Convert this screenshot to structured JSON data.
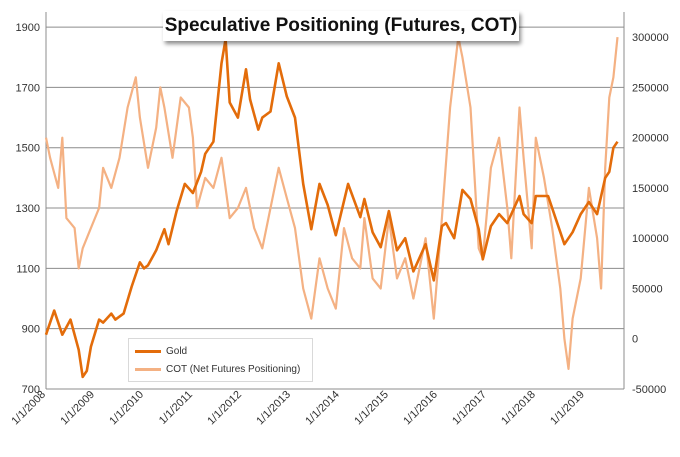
{
  "chart_data": {
    "type": "line",
    "title": "Speculative Positioning (Futures, COT)",
    "xlabel": "",
    "ylabel": "",
    "x_ticks": [
      "1/1/2008",
      "1/1/2009",
      "1/1/2010",
      "1/1/2011",
      "1/1/2012",
      "1/1/2013",
      "1/1/2014",
      "1/1/2015",
      "1/1/2016",
      "1/1/2017",
      "1/1/2018",
      "1/1/2019"
    ],
    "ylim_left": [
      700,
      1950
    ],
    "ylim_right": [
      -50000,
      325000
    ],
    "yticks_left": [
      700,
      900,
      1100,
      1300,
      1500,
      1700,
      1900
    ],
    "yticks_right": [
      -50000,
      0,
      50000,
      100000,
      150000,
      200000,
      250000,
      300000
    ],
    "grid": true,
    "legend_position": "bottom-left",
    "series": [
      {
        "name": "Gold",
        "axis": "left",
        "color": "#e36c0a",
        "points": [
          [
            "2008-01",
            880
          ],
          [
            "2008-03",
            960
          ],
          [
            "2008-05",
            880
          ],
          [
            "2008-07",
            930
          ],
          [
            "2008-09",
            830
          ],
          [
            "2008-10",
            740
          ],
          [
            "2008-11",
            760
          ],
          [
            "2008-12",
            840
          ],
          [
            "2009-02",
            930
          ],
          [
            "2009-03",
            920
          ],
          [
            "2009-05",
            950
          ],
          [
            "2009-06",
            930
          ],
          [
            "2009-08",
            950
          ],
          [
            "2009-10",
            1040
          ],
          [
            "2009-12",
            1120
          ],
          [
            "2010-01",
            1100
          ],
          [
            "2010-02",
            1110
          ],
          [
            "2010-04",
            1160
          ],
          [
            "2010-06",
            1230
          ],
          [
            "2010-07",
            1180
          ],
          [
            "2010-09",
            1290
          ],
          [
            "2010-11",
            1380
          ],
          [
            "2011-01",
            1350
          ],
          [
            "2011-03",
            1420
          ],
          [
            "2011-04",
            1480
          ],
          [
            "2011-06",
            1520
          ],
          [
            "2011-08",
            1780
          ],
          [
            "2011-09",
            1860
          ],
          [
            "2011-10",
            1650
          ],
          [
            "2011-12",
            1600
          ],
          [
            "2012-02",
            1760
          ],
          [
            "2012-03",
            1660
          ],
          [
            "2012-05",
            1560
          ],
          [
            "2012-06",
            1600
          ],
          [
            "2012-08",
            1620
          ],
          [
            "2012-10",
            1780
          ],
          [
            "2012-12",
            1670
          ],
          [
            "2013-02",
            1600
          ],
          [
            "2013-04",
            1380
          ],
          [
            "2013-06",
            1230
          ],
          [
            "2013-08",
            1380
          ],
          [
            "2013-10",
            1310
          ],
          [
            "2013-12",
            1210
          ],
          [
            "2014-03",
            1380
          ],
          [
            "2014-06",
            1270
          ],
          [
            "2014-07",
            1330
          ],
          [
            "2014-09",
            1220
          ],
          [
            "2014-11",
            1170
          ],
          [
            "2015-01",
            1290
          ],
          [
            "2015-03",
            1160
          ],
          [
            "2015-05",
            1200
          ],
          [
            "2015-07",
            1090
          ],
          [
            "2015-08",
            1120
          ],
          [
            "2015-10",
            1180
          ],
          [
            "2015-12",
            1060
          ],
          [
            "2016-02",
            1240
          ],
          [
            "2016-03",
            1250
          ],
          [
            "2016-05",
            1200
          ],
          [
            "2016-07",
            1360
          ],
          [
            "2016-09",
            1330
          ],
          [
            "2016-11",
            1230
          ],
          [
            "2016-12",
            1130
          ],
          [
            "2017-02",
            1240
          ],
          [
            "2017-04",
            1280
          ],
          [
            "2017-06",
            1250
          ],
          [
            "2017-09",
            1340
          ],
          [
            "2017-10",
            1280
          ],
          [
            "2017-12",
            1250
          ],
          [
            "2018-01",
            1340
          ],
          [
            "2018-04",
            1340
          ],
          [
            "2018-06",
            1260
          ],
          [
            "2018-08",
            1180
          ],
          [
            "2018-10",
            1220
          ],
          [
            "2018-12",
            1280
          ],
          [
            "2019-02",
            1320
          ],
          [
            "2019-04",
            1280
          ],
          [
            "2019-06",
            1400
          ],
          [
            "2019-07",
            1420
          ],
          [
            "2019-08",
            1500
          ],
          [
            "2019-09",
            1520
          ]
        ]
      },
      {
        "name": "COT (Net Futures Positioning)",
        "axis": "right",
        "color": "#f4b183",
        "points": [
          [
            "2008-01",
            200000
          ],
          [
            "2008-02",
            180000
          ],
          [
            "2008-04",
            150000
          ],
          [
            "2008-05",
            200000
          ],
          [
            "2008-06",
            120000
          ],
          [
            "2008-08",
            110000
          ],
          [
            "2008-09",
            70000
          ],
          [
            "2008-10",
            90000
          ],
          [
            "2008-12",
            110000
          ],
          [
            "2009-02",
            130000
          ],
          [
            "2009-03",
            170000
          ],
          [
            "2009-05",
            150000
          ],
          [
            "2009-07",
            180000
          ],
          [
            "2009-09",
            230000
          ],
          [
            "2009-11",
            260000
          ],
          [
            "2009-12",
            220000
          ],
          [
            "2010-02",
            170000
          ],
          [
            "2010-04",
            210000
          ],
          [
            "2010-05",
            250000
          ],
          [
            "2010-06",
            230000
          ],
          [
            "2010-08",
            180000
          ],
          [
            "2010-10",
            240000
          ],
          [
            "2010-12",
            230000
          ],
          [
            "2011-01",
            200000
          ],
          [
            "2011-02",
            130000
          ],
          [
            "2011-04",
            160000
          ],
          [
            "2011-06",
            150000
          ],
          [
            "2011-08",
            180000
          ],
          [
            "2011-10",
            120000
          ],
          [
            "2011-12",
            130000
          ],
          [
            "2012-02",
            150000
          ],
          [
            "2012-04",
            110000
          ],
          [
            "2012-06",
            90000
          ],
          [
            "2012-08",
            130000
          ],
          [
            "2012-10",
            170000
          ],
          [
            "2012-12",
            140000
          ],
          [
            "2013-02",
            110000
          ],
          [
            "2013-04",
            50000
          ],
          [
            "2013-06",
            20000
          ],
          [
            "2013-08",
            80000
          ],
          [
            "2013-10",
            50000
          ],
          [
            "2013-12",
            30000
          ],
          [
            "2014-02",
            110000
          ],
          [
            "2014-04",
            80000
          ],
          [
            "2014-06",
            70000
          ],
          [
            "2014-07",
            120000
          ],
          [
            "2014-09",
            60000
          ],
          [
            "2014-11",
            50000
          ],
          [
            "2015-01",
            120000
          ],
          [
            "2015-03",
            60000
          ],
          [
            "2015-05",
            80000
          ],
          [
            "2015-07",
            40000
          ],
          [
            "2015-08",
            60000
          ],
          [
            "2015-10",
            100000
          ],
          [
            "2015-12",
            20000
          ],
          [
            "2016-02",
            120000
          ],
          [
            "2016-04",
            230000
          ],
          [
            "2016-06",
            300000
          ],
          [
            "2016-07",
            280000
          ],
          [
            "2016-09",
            230000
          ],
          [
            "2016-11",
            90000
          ],
          [
            "2016-12",
            80000
          ],
          [
            "2017-02",
            170000
          ],
          [
            "2017-04",
            200000
          ],
          [
            "2017-06",
            130000
          ],
          [
            "2017-07",
            80000
          ],
          [
            "2017-09",
            230000
          ],
          [
            "2017-10",
            180000
          ],
          [
            "2017-12",
            90000
          ],
          [
            "2018-01",
            200000
          ],
          [
            "2018-03",
            160000
          ],
          [
            "2018-05",
            110000
          ],
          [
            "2018-07",
            50000
          ],
          [
            "2018-08",
            0
          ],
          [
            "2018-09",
            -30000
          ],
          [
            "2018-10",
            20000
          ],
          [
            "2018-12",
            60000
          ],
          [
            "2019-02",
            150000
          ],
          [
            "2019-04",
            100000
          ],
          [
            "2019-05",
            50000
          ],
          [
            "2019-06",
            170000
          ],
          [
            "2019-07",
            240000
          ],
          [
            "2019-08",
            260000
          ],
          [
            "2019-09",
            300000
          ]
        ]
      }
    ]
  }
}
